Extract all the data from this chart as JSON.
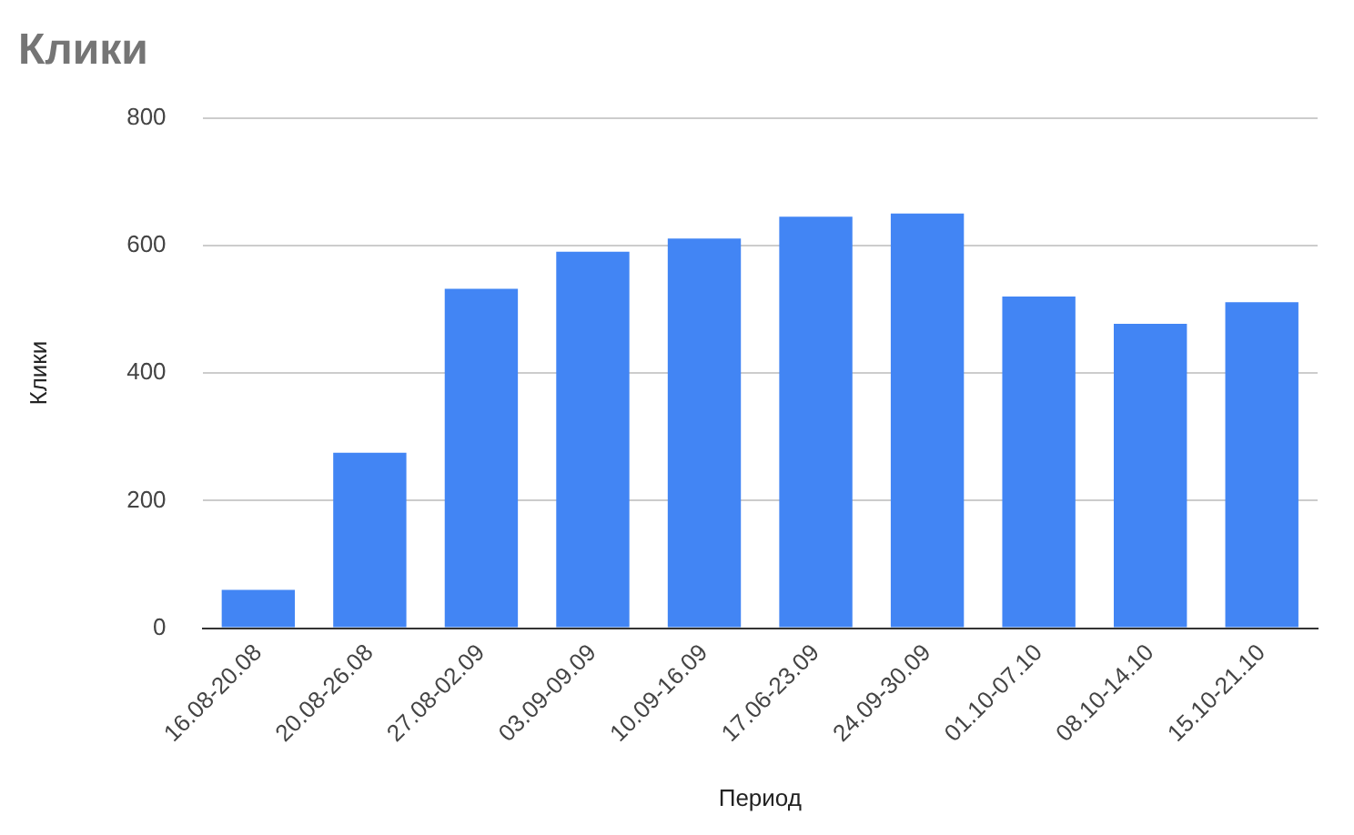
{
  "chart_data": {
    "type": "bar",
    "title": "Клики",
    "xlabel": "Период",
    "ylabel": "Клики",
    "categories": [
      "16.08-20.08",
      "20.08-26.08",
      "27.08-02.09",
      "03.09-09.09",
      "10.09-16.09",
      "17.06-23.09",
      "24.09-30.09",
      "01.10-07.10",
      "08.10-14.10",
      "15.10-21.10"
    ],
    "series": [
      {
        "color": "#4285f4",
        "values": [
          60,
          275,
          532,
          590,
          611,
          645,
          650,
          520,
          477,
          511
        ]
      }
    ],
    "ylim": [
      0,
      800
    ],
    "yticks": [
      0,
      200,
      400,
      600,
      800
    ],
    "grid": "y",
    "legend": false
  }
}
